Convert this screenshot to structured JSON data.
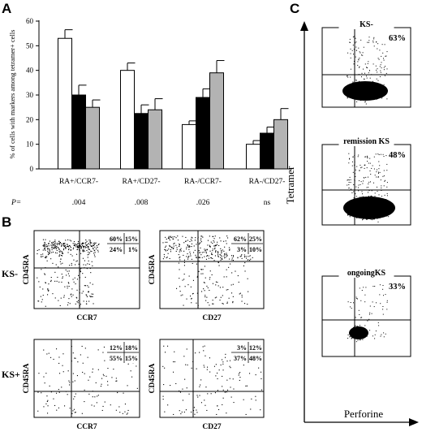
{
  "panels": {
    "A": "A",
    "B": "B",
    "C": "C"
  },
  "chart_data": [
    {
      "type": "bar",
      "panel": "A",
      "ylabel": "% of cells with markers among tetramer+ cells",
      "ylim": [
        0,
        60
      ],
      "yticks": [
        "0",
        "10",
        "20",
        "30",
        "40",
        "50",
        "60"
      ],
      "categories": [
        "RA+/CCR7-",
        "RA+/CD27-",
        "RA-/CCR7-",
        "RA-/CD27-"
      ],
      "series": [
        {
          "fill": "#ffffff",
          "values": [
            53,
            40,
            18,
            10
          ],
          "errors": [
            3.5,
            3,
            1.5,
            1.5
          ]
        },
        {
          "fill": "#000000",
          "values": [
            30,
            22.5,
            29,
            14.5
          ],
          "errors": [
            4,
            3.5,
            3.5,
            2.5
          ]
        },
        {
          "fill": "#b3b3b3",
          "values": [
            25,
            24,
            39,
            20
          ],
          "errors": [
            3,
            4.5,
            5,
            4.5
          ]
        }
      ],
      "p_label": "P=",
      "p_values": [
        ".004",
        ".008",
        ".026",
        "ns"
      ]
    },
    {
      "type": "scatter",
      "panel": "B",
      "rows": [
        "KS-",
        "KS+"
      ],
      "yname": "CD45RA",
      "plots": [
        {
          "row": 0,
          "xname": "CCR7",
          "q": [
            "60%",
            "15%",
            "24%",
            "1%"
          ]
        },
        {
          "row": 0,
          "xname": "CD27",
          "q": [
            "62%",
            "25%",
            "3%",
            "10%"
          ]
        },
        {
          "row": 1,
          "xname": "CCR7",
          "q": [
            "12%",
            "18%",
            "55%",
            "15%"
          ]
        },
        {
          "row": 1,
          "xname": "CD27",
          "q": [
            "3%",
            "12%",
            "37%",
            "48%"
          ]
        }
      ]
    },
    {
      "type": "scatter",
      "panel": "C",
      "ylabel": "Tetramer",
      "xlabel": "Perforine",
      "plots": [
        {
          "title": "KS-",
          "percent": "63%"
        },
        {
          "title": "remission KS",
          "percent": "48%"
        },
        {
          "title": "ongoingKS",
          "percent": "33%"
        }
      ]
    }
  ]
}
